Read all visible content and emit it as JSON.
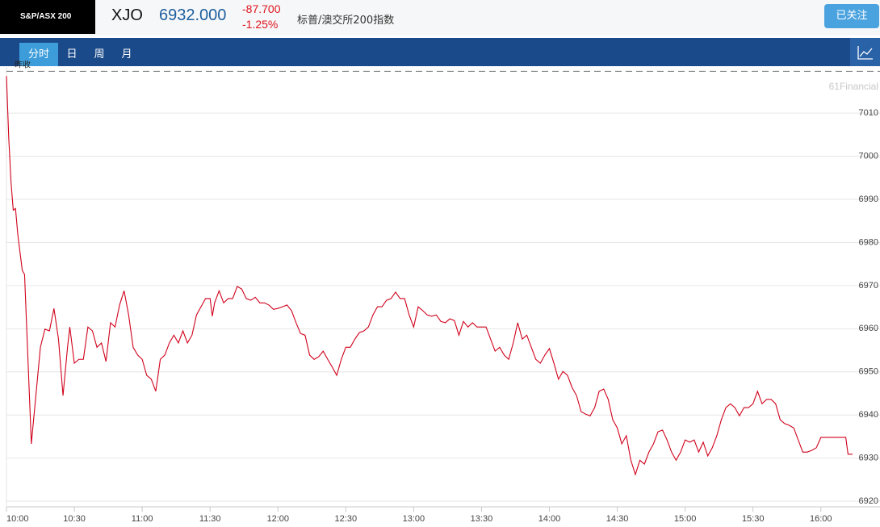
{
  "header": {
    "badge": "S&P/ASX 200",
    "symbol": "XJO",
    "price": "6932.000",
    "change": "-87.700",
    "change_pct": "-1.25%",
    "name": "标普/澳交所200指数",
    "follow_button": "已关注"
  },
  "tabs": [
    "分时",
    "日",
    "周",
    "月"
  ],
  "chart_data": {
    "type": "line",
    "x": [
      "10:00",
      "10:01",
      "10:02",
      "10:03",
      "10:04",
      "10:05",
      "10:07",
      "10:08",
      "10:11",
      "10:13",
      "10:15",
      "10:17",
      "10:19",
      "10:21",
      "10:23",
      "10:25",
      "10:27",
      "10:28",
      "10:30",
      "10:32",
      "10:34",
      "10:36",
      "10:38",
      "10:40",
      "10:42",
      "10:44",
      "10:46",
      "10:48",
      "10:50",
      "10:52",
      "10:54",
      "10:56",
      "10:58",
      "11:00",
      "11:02",
      "11:04",
      "11:06",
      "11:08",
      "11:10",
      "11:12",
      "11:14",
      "11:16",
      "11:18",
      "11:20",
      "11:22",
      "11:24",
      "11:26",
      "11:28",
      "11:30",
      "11:31",
      "11:32",
      "11:34",
      "11:36",
      "11:38",
      "11:40",
      "11:42",
      "11:44",
      "11:46",
      "11:48",
      "11:50",
      "11:52",
      "11:54",
      "11:56",
      "11:58",
      "12:00",
      "12:02",
      "12:04",
      "12:06",
      "12:08",
      "12:10",
      "12:12",
      "12:14",
      "12:16",
      "12:18",
      "12:20",
      "12:22",
      "12:24",
      "12:26",
      "12:28",
      "12:30",
      "12:32",
      "12:34",
      "12:36",
      "12:38",
      "12:40",
      "12:42",
      "12:44",
      "12:46",
      "12:48",
      "12:50",
      "12:52",
      "12:54",
      "12:56",
      "12:58",
      "13:00",
      "13:02",
      "13:04",
      "13:06",
      "13:08",
      "13:10",
      "13:12",
      "13:14",
      "13:16",
      "13:18",
      "13:20",
      "13:22",
      "13:24",
      "13:26",
      "13:28",
      "13:30",
      "13:32",
      "13:34",
      "13:36",
      "13:38",
      "13:40",
      "13:42",
      "13:44",
      "13:46",
      "13:48",
      "13:50",
      "13:52",
      "13:54",
      "13:56",
      "13:58",
      "14:00",
      "14:02",
      "14:04",
      "14:06",
      "14:08",
      "14:10",
      "14:12",
      "14:14",
      "14:16",
      "14:18",
      "14:20",
      "14:22",
      "14:24",
      "14:26",
      "14:28",
      "14:30",
      "14:32",
      "14:34",
      "14:36",
      "14:38",
      "14:40",
      "14:42",
      "14:44",
      "14:46",
      "14:48",
      "14:50",
      "14:52",
      "14:54",
      "14:56",
      "14:58",
      "15:00",
      "15:02",
      "15:04",
      "15:06",
      "15:08",
      "15:10",
      "15:12",
      "15:14",
      "15:16",
      "15:18",
      "15:20",
      "15:22",
      "15:24",
      "15:26",
      "15:28",
      "15:30",
      "15:32",
      "15:34",
      "15:36",
      "15:38",
      "15:40",
      "15:42",
      "15:44",
      "15:46",
      "15:48",
      "15:50",
      "15:52",
      "15:54",
      "15:56",
      "15:58",
      "16:00",
      "16:02",
      "16:04",
      "16:06",
      "16:08",
      "16:10",
      "16:11",
      "16:12",
      "16:14"
    ],
    "series": [
      {
        "color": "#d0021b",
        "values": [
          7018.6,
          7004.4,
          6994.1,
          6987.5,
          6987.9,
          6981.9,
          6973.5,
          6972.6,
          6933.3,
          6944.5,
          6955.7,
          6959.9,
          6959.5,
          6964.7,
          6957.6,
          6944.5,
          6955.7,
          6960.4,
          6952.0,
          6952.9,
          6952.9,
          6960.4,
          6959.5,
          6955.7,
          6956.7,
          6952.4,
          6961.4,
          6960.4,
          6965.5,
          6968.8,
          6963.2,
          6955.7,
          6953.9,
          6952.9,
          6949.2,
          6948.3,
          6945.5,
          6952.9,
          6953.9,
          6956.7,
          6958.5,
          6956.7,
          6959.5,
          6956.7,
          6958.5,
          6963.2,
          6965.1,
          6967.0,
          6967.0,
          6962.9,
          6966.0,
          6968.8,
          6966.0,
          6967.0,
          6967.0,
          6969.8,
          6969.2,
          6967.0,
          6966.6,
          6967.3,
          6966.0,
          6966.0,
          6965.5,
          6964.5,
          6964.7,
          6965.1,
          6965.5,
          6964.2,
          6961.4,
          6958.9,
          6958.5,
          6953.9,
          6952.9,
          6953.5,
          6954.8,
          6952.9,
          6951.1,
          6949.2,
          6952.9,
          6955.7,
          6955.7,
          6957.6,
          6959.1,
          6959.5,
          6960.4,
          6963.2,
          6965.1,
          6965.1,
          6966.6,
          6967.0,
          6968.5,
          6967.0,
          6967.0,
          6963.2,
          6960.4,
          6965.1,
          6964.2,
          6963.2,
          6962.9,
          6963.2,
          6961.7,
          6961.4,
          6962.3,
          6961.9,
          6958.5,
          6961.7,
          6960.4,
          6961.4,
          6960.4,
          6960.4,
          6960.4,
          6957.6,
          6954.8,
          6955.7,
          6953.9,
          6952.9,
          6956.7,
          6961.4,
          6957.6,
          6958.5,
          6955.7,
          6952.9,
          6952.0,
          6953.9,
          6955.4,
          6952.0,
          6948.3,
          6950.1,
          6949.2,
          6946.4,
          6944.5,
          6940.8,
          6940.2,
          6939.8,
          6941.7,
          6945.5,
          6946.0,
          6943.6,
          6938.9,
          6937.0,
          6933.3,
          6935.2,
          6929.5,
          6926.2,
          6929.5,
          6928.6,
          6931.4,
          6933.3,
          6936.1,
          6936.5,
          6934.2,
          6931.4,
          6929.5,
          6931.4,
          6934.2,
          6933.7,
          6934.2,
          6931.4,
          6933.7,
          6930.5,
          6932.4,
          6935.2,
          6938.9,
          6941.7,
          6942.6,
          6941.7,
          6939.8,
          6941.7,
          6941.7,
          6942.6,
          6945.5,
          6942.6,
          6943.6,
          6943.6,
          6942.6,
          6938.9,
          6938.0,
          6937.6,
          6937.0,
          6934.2,
          6931.4,
          6931.4,
          6931.8,
          6932.4,
          6934.8,
          6934.8,
          6934.8,
          6934.8,
          6934.8,
          6934.8,
          6934.8,
          6930.9,
          6930.9
        ]
      }
    ],
    "xlim": [
      "10:00",
      "16:14"
    ],
    "xticks": [
      "10:00",
      "10:30",
      "11:00",
      "11:30",
      "12:00",
      "12:30",
      "13:00",
      "13:30",
      "14:00",
      "14:30",
      "15:00",
      "15:30",
      "16:00"
    ],
    "ylim": [
      6918.7,
      7020.7
    ],
    "yticks": [
      6920,
      6930,
      6940,
      6950,
      6960,
      6970,
      6980,
      6990,
      7000,
      7010
    ],
    "grid": true,
    "reference_line": {
      "label": "昨收",
      "value": 7019.7
    },
    "watermark": "61Financial"
  }
}
